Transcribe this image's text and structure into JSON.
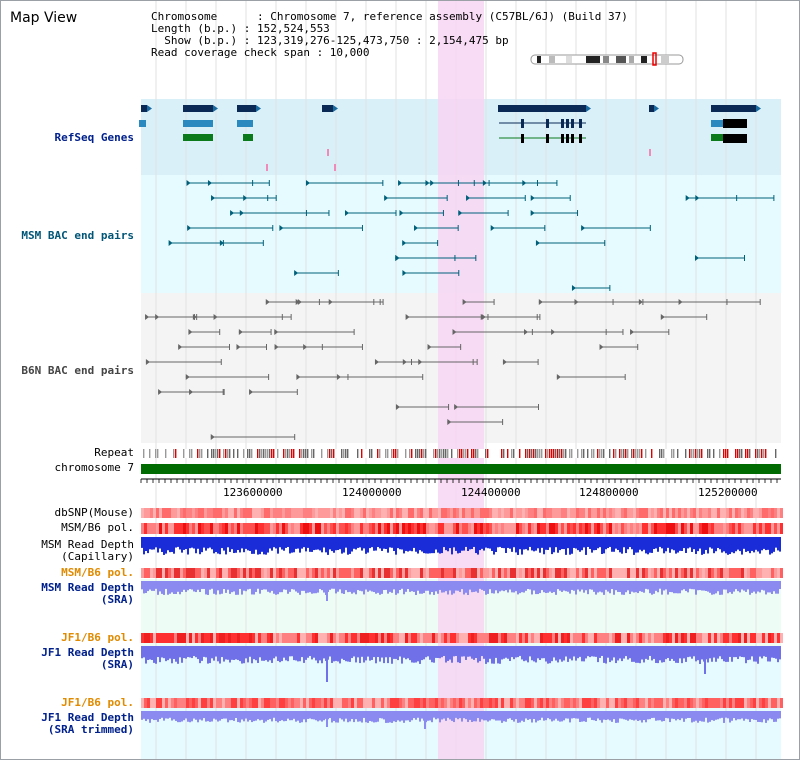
{
  "view": {
    "title": "Map View"
  },
  "info": {
    "line1": "Chromosome      : Chromosome 7, reference assembly (C57BL/6J) (Build 37)",
    "line2": "Length (b.p.) : 152,524,553",
    "line3": "  Show (b.p.) : 123,319,276-125,473,750 : 2,154,475 bp",
    "line4": "Read coverage check span : 10,000"
  },
  "tracks": {
    "refseq": "RefSeq Genes",
    "msm_bac": "MSM BAC end pairs",
    "b6n_bac": "B6N BAC end pairs",
    "repeat": "Repeat",
    "chromosome": "chromosome 7",
    "dbsnp": "dbSNP(Mouse)",
    "msm_pol1": "MSM/B6 pol.",
    "msm_depth_cap": "MSM Read Depth\n(Capillary)",
    "msm_pol2": "MSM/B6 pol.",
    "msm_depth_sra": "MSM Read Depth\n(SRA)",
    "jf1_pol1": "JF1/B6 pol.",
    "jf1_depth_sra": "JF1 Read Depth\n(SRA)",
    "jf1_pol2": "JF1/B6 pol.",
    "jf1_depth_trim": "JF1 Read Depth\n(SRA trimmed)"
  },
  "axis": {
    "ticks": [
      "123600000",
      "124000000",
      "124400000",
      "124800000",
      "125200000"
    ]
  },
  "colors": {
    "refseq_bg": "#d9f0f9",
    "bac_bg": "#e6fbff",
    "highlight": "#f7d5f2",
    "chrom_bar": "#006b00",
    "gene": "#0a2a55"
  }
}
